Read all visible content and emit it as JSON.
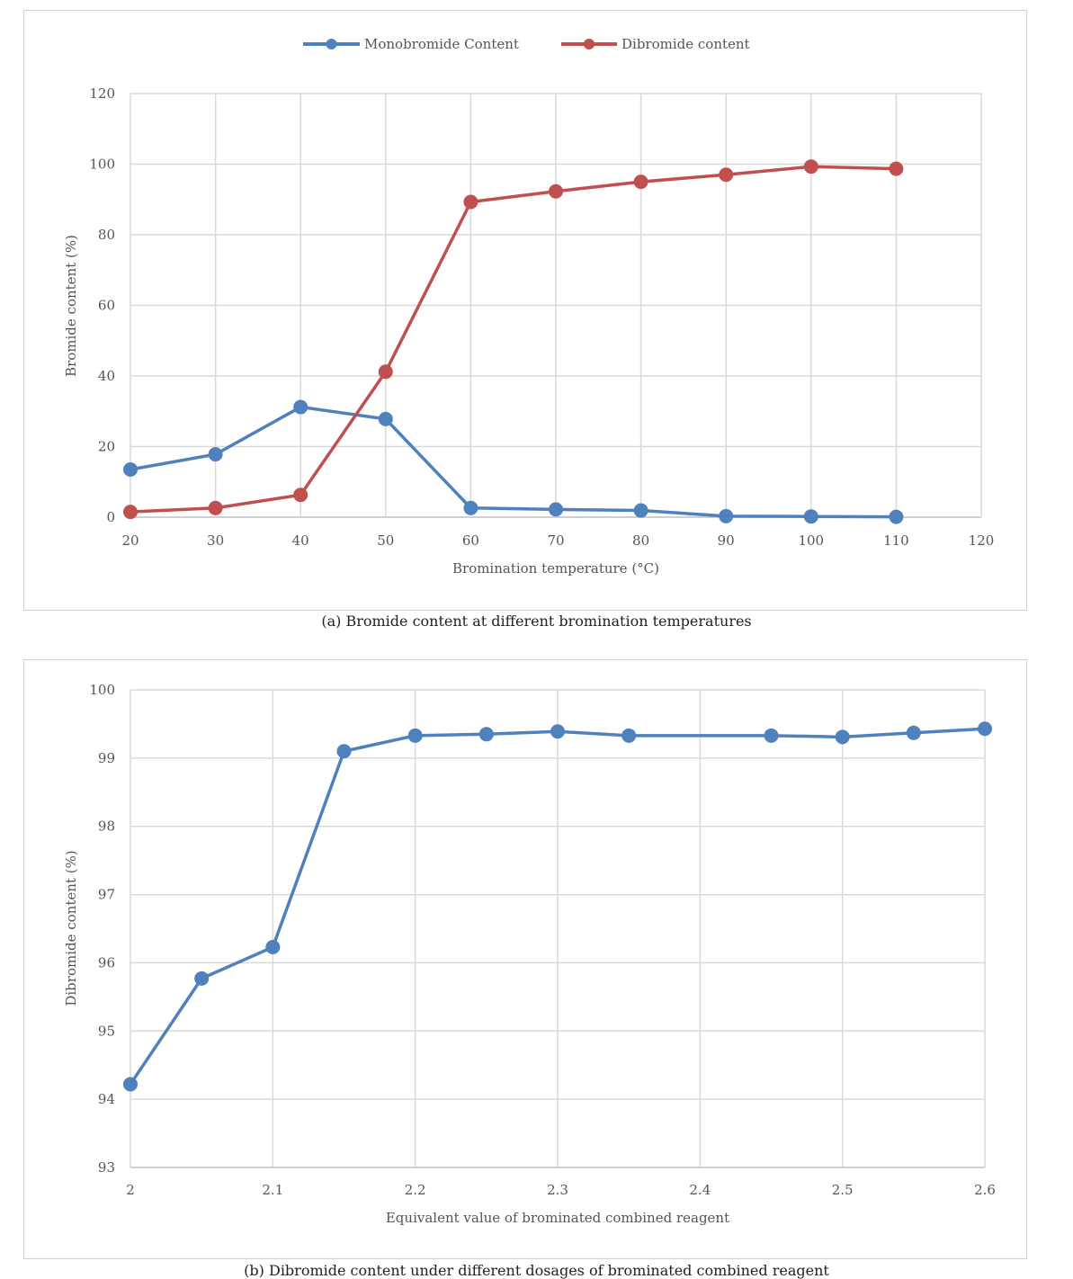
{
  "chart_data": [
    {
      "type": "line",
      "xlabel": "Bromination temperature (°C)",
      "ylabel": "Bromide content (%)",
      "xlim": [
        20,
        120
      ],
      "ylim": [
        0,
        120
      ],
      "xticks": [
        20,
        30,
        40,
        50,
        60,
        70,
        80,
        90,
        100,
        110,
        120
      ],
      "yticks": [
        0,
        20,
        40,
        60,
        80,
        100,
        120
      ],
      "grid": true,
      "legend_position": "top",
      "x": [
        20,
        30,
        40,
        50,
        60,
        70,
        80,
        90,
        100,
        110
      ],
      "series": [
        {
          "name": "Monobromide Content",
          "color": "#4f81bd",
          "values": [
            13.5,
            17.8,
            31.2,
            27.8,
            2.6,
            2.2,
            1.9,
            0.3,
            0.2,
            0.1
          ]
        },
        {
          "name": "Dibromide content",
          "color": "#c0504d",
          "values": [
            1.5,
            2.6,
            6.3,
            41.2,
            89.3,
            92.3,
            95.0,
            97.0,
            99.3,
            98.7
          ]
        }
      ],
      "caption": "(a) Bromide content at different bromination temperatures"
    },
    {
      "type": "line",
      "xlabel": "Equivalent value of brominated combined reagent",
      "ylabel": "Dibromide content (%)",
      "xlim": [
        2,
        2.6
      ],
      "ylim": [
        93,
        100
      ],
      "xticks": [
        "2",
        "2.1",
        "2.2",
        "2.3",
        "2.4",
        "2.5",
        "2.6"
      ],
      "yticks": [
        93,
        94,
        95,
        96,
        97,
        98,
        99,
        100
      ],
      "grid": true,
      "x": [
        2.0,
        2.05,
        2.1,
        2.15,
        2.2,
        2.25,
        2.3,
        2.35,
        2.45,
        2.5,
        2.55,
        2.6
      ],
      "series": [
        {
          "color": "#4f81bd",
          "values": [
            94.22,
            95.77,
            96.23,
            99.1,
            99.33,
            99.35,
            99.39,
            99.33,
            99.33,
            99.31,
            99.37,
            99.43
          ]
        }
      ],
      "caption": "(b) Dibromide content under different dosages of brominated combined reagent"
    }
  ]
}
